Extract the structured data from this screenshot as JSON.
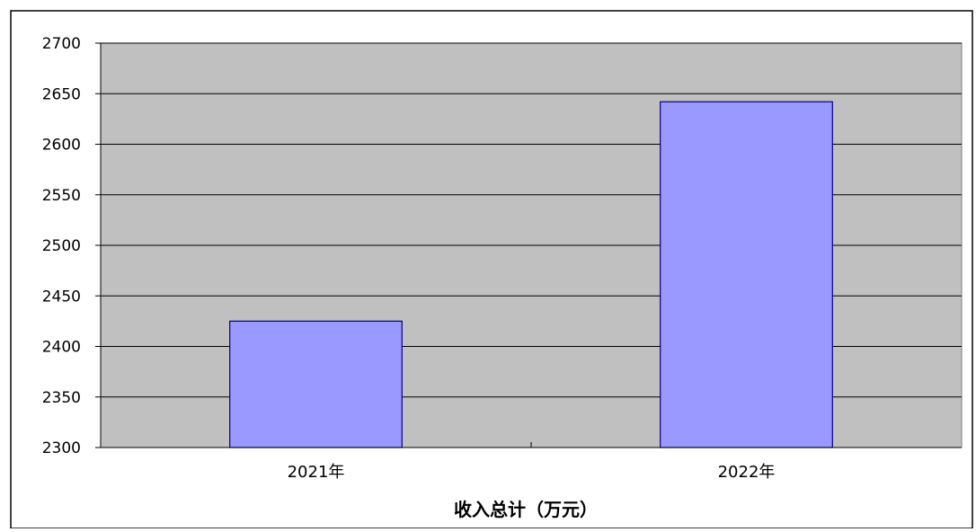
{
  "chart_data": {
    "type": "bar",
    "categories": [
      "2021年",
      "2022年"
    ],
    "values": [
      2425,
      2642
    ],
    "xlabel": "收入总计（万元）",
    "ylabel": "",
    "ylim": [
      2300,
      2700
    ],
    "yticks": [
      2300,
      2350,
      2400,
      2450,
      2500,
      2550,
      2600,
      2650,
      2700
    ],
    "grid": true,
    "legend": "none",
    "colors": {
      "bar_fill": "#9999ff",
      "bar_stroke": "#000080",
      "plot_bg": "#c0c0c0",
      "gridline": "#000000",
      "frame": "#000000"
    }
  }
}
